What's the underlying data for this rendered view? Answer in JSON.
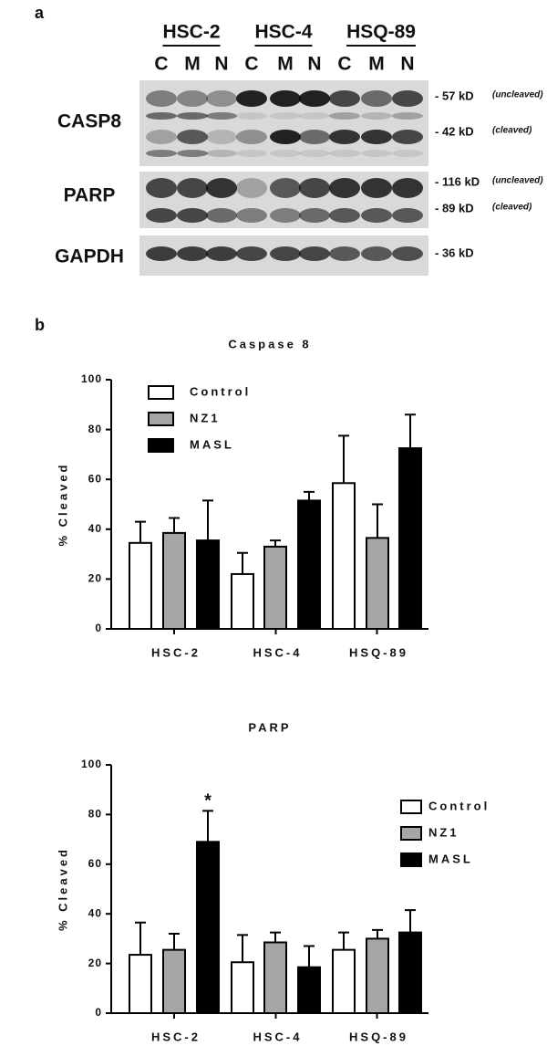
{
  "figure": {
    "panel_a": "a",
    "panel_b": "b"
  },
  "blot": {
    "cell_lines": [
      "HSC-2",
      "HSC-4",
      "HSQ-89"
    ],
    "lanes": [
      "C",
      "M",
      "N",
      "C",
      "M",
      "N",
      "C",
      "M",
      "N"
    ],
    "proteins": [
      "CASP8",
      "PARP",
      "GAPDH"
    ],
    "markers": [
      {
        "size": "- 57 kD",
        "note": "(uncleaved)"
      },
      {
        "size": "- 42 kD",
        "note": "(cleaved)"
      },
      {
        "size": "- 116 kD",
        "note": "(uncleaved)"
      },
      {
        "size": "- 89 kD",
        "note": "(cleaved)"
      },
      {
        "size": "- 36 kD"
      }
    ]
  },
  "chart_data": [
    {
      "type": "bar",
      "title": "Caspase 8",
      "y_label": "% Cleaved",
      "categories": [
        "HSC-2",
        "HSC-4",
        "HSQ-89"
      ],
      "series": [
        {
          "name": "Control",
          "color": "#ffffff",
          "values": [
            34.5,
            22,
            58.5
          ],
          "errors": [
            8.5,
            8.5,
            19
          ]
        },
        {
          "name": "NZ1",
          "color": "#a6a6a6",
          "values": [
            38.5,
            33,
            36.5
          ],
          "errors": [
            6,
            2.5,
            13.5
          ]
        },
        {
          "name": "MASL",
          "color": "#000000",
          "values": [
            35.5,
            51.5,
            72.5
          ],
          "errors": [
            16,
            3.5,
            13.5
          ]
        }
      ],
      "ylim": [
        0,
        100
      ],
      "yticks": [
        0,
        20,
        40,
        60,
        80,
        100
      ],
      "legend": "upper left"
    },
    {
      "type": "bar",
      "title": "PARP",
      "y_label": "% Cleaved",
      "categories": [
        "HSC-2",
        "HSC-4",
        "HSQ-89"
      ],
      "series": [
        {
          "name": "Control",
          "color": "#ffffff",
          "values": [
            23.5,
            20.5,
            25.5
          ],
          "errors": [
            13,
            11,
            7
          ]
        },
        {
          "name": "NZ1",
          "color": "#a6a6a6",
          "values": [
            25.5,
            28.5,
            30
          ],
          "errors": [
            6.5,
            4,
            3.5
          ]
        },
        {
          "name": "MASL",
          "color": "#000000",
          "values": [
            69,
            18.5,
            32.5
          ],
          "errors": [
            12.5,
            8.5,
            9
          ]
        }
      ],
      "ylim": [
        0,
        100
      ],
      "yticks": [
        0,
        20,
        40,
        60,
        80,
        100
      ],
      "legend": "upper right",
      "annotations": [
        {
          "text": "*",
          "category": "HSC-2",
          "series": "MASL"
        }
      ]
    }
  ]
}
